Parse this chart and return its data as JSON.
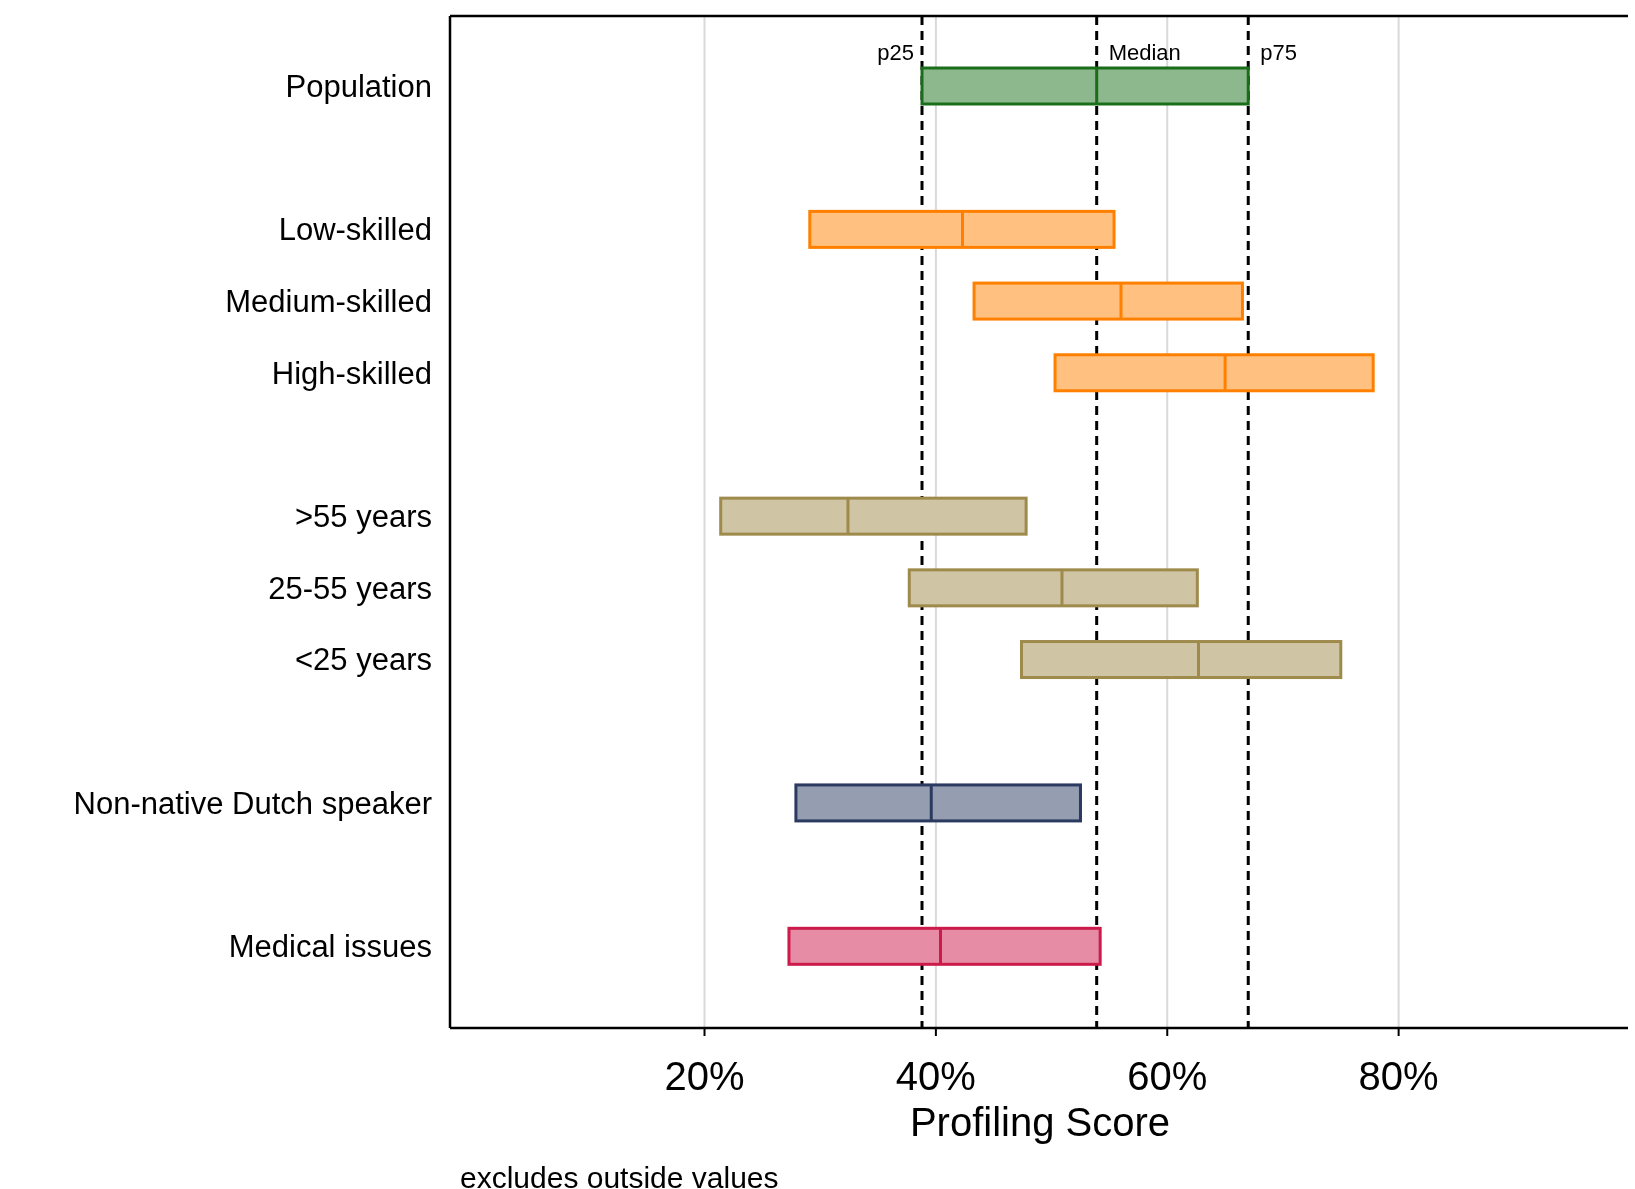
{
  "chart_data": {
    "type": "box",
    "orientation": "horizontal",
    "xlabel": "Profiling Score",
    "categories": [
      "Population",
      null,
      "Low-skilled",
      "Medium-skilled",
      "High-skilled",
      null,
      ">55 years",
      "25-55 years",
      "<25 years",
      null,
      "Non-native Dutch speaker",
      null,
      "Medical issues"
    ],
    "boxes": [
      {
        "low": 38.8,
        "q1": 38.8,
        "median": 53.9,
        "q3": 67.0,
        "high": 67.0
      },
      null,
      {
        "low": 29.1,
        "q1": 29.1,
        "median": 42.3,
        "q3": 55.4,
        "high": 55.4
      },
      {
        "low": 43.3,
        "q1": 43.3,
        "median": 56.0,
        "q3": 66.5,
        "high": 66.5
      },
      {
        "low": 50.3,
        "q1": 50.3,
        "median": 65.0,
        "q3": 77.8,
        "high": 77.8
      },
      null,
      {
        "low": 21.4,
        "q1": 21.4,
        "median": 32.4,
        "q3": 47.8,
        "high": 47.8
      },
      {
        "low": 37.7,
        "q1": 37.7,
        "median": 50.9,
        "q3": 62.6,
        "high": 62.6
      },
      {
        "low": 47.4,
        "q1": 47.4,
        "median": 62.7,
        "q3": 75.0,
        "high": 75.0
      },
      null,
      {
        "low": 27.9,
        "q1": 27.9,
        "median": 39.6,
        "q3": 52.5,
        "high": 52.5
      },
      null,
      {
        "low": 27.3,
        "q1": 27.3,
        "median": 40.4,
        "q3": 54.2,
        "high": 54.2
      }
    ],
    "colors": [
      "#1a6e1a",
      null,
      "#ff8000",
      "#ff8000",
      "#ff8000",
      null,
      "#9e8a4a",
      "#9e8a4a",
      "#9e8a4a",
      null,
      "#2a3a60",
      null,
      "#cc1a4a"
    ],
    "xlim": [
      -2,
      100
    ],
    "xticks": [
      {
        "value": 20,
        "label": "20%"
      },
      {
        "value": 40,
        "label": "40%"
      },
      {
        "value": 60,
        "label": "60%"
      },
      {
        "value": 80,
        "label": "80%"
      }
    ],
    "grid": "x",
    "ref_lines": [
      {
        "axis": "x",
        "value": 38.8,
        "label": "p25",
        "line_style": "dashed"
      },
      {
        "axis": "x",
        "value": 53.9,
        "label": "Median",
        "line_style": "dashed"
      },
      {
        "axis": "x",
        "value": 67.0,
        "label": "p75",
        "line_style": "dashed"
      }
    ],
    "annotations": [
      "excludes outside values"
    ]
  }
}
